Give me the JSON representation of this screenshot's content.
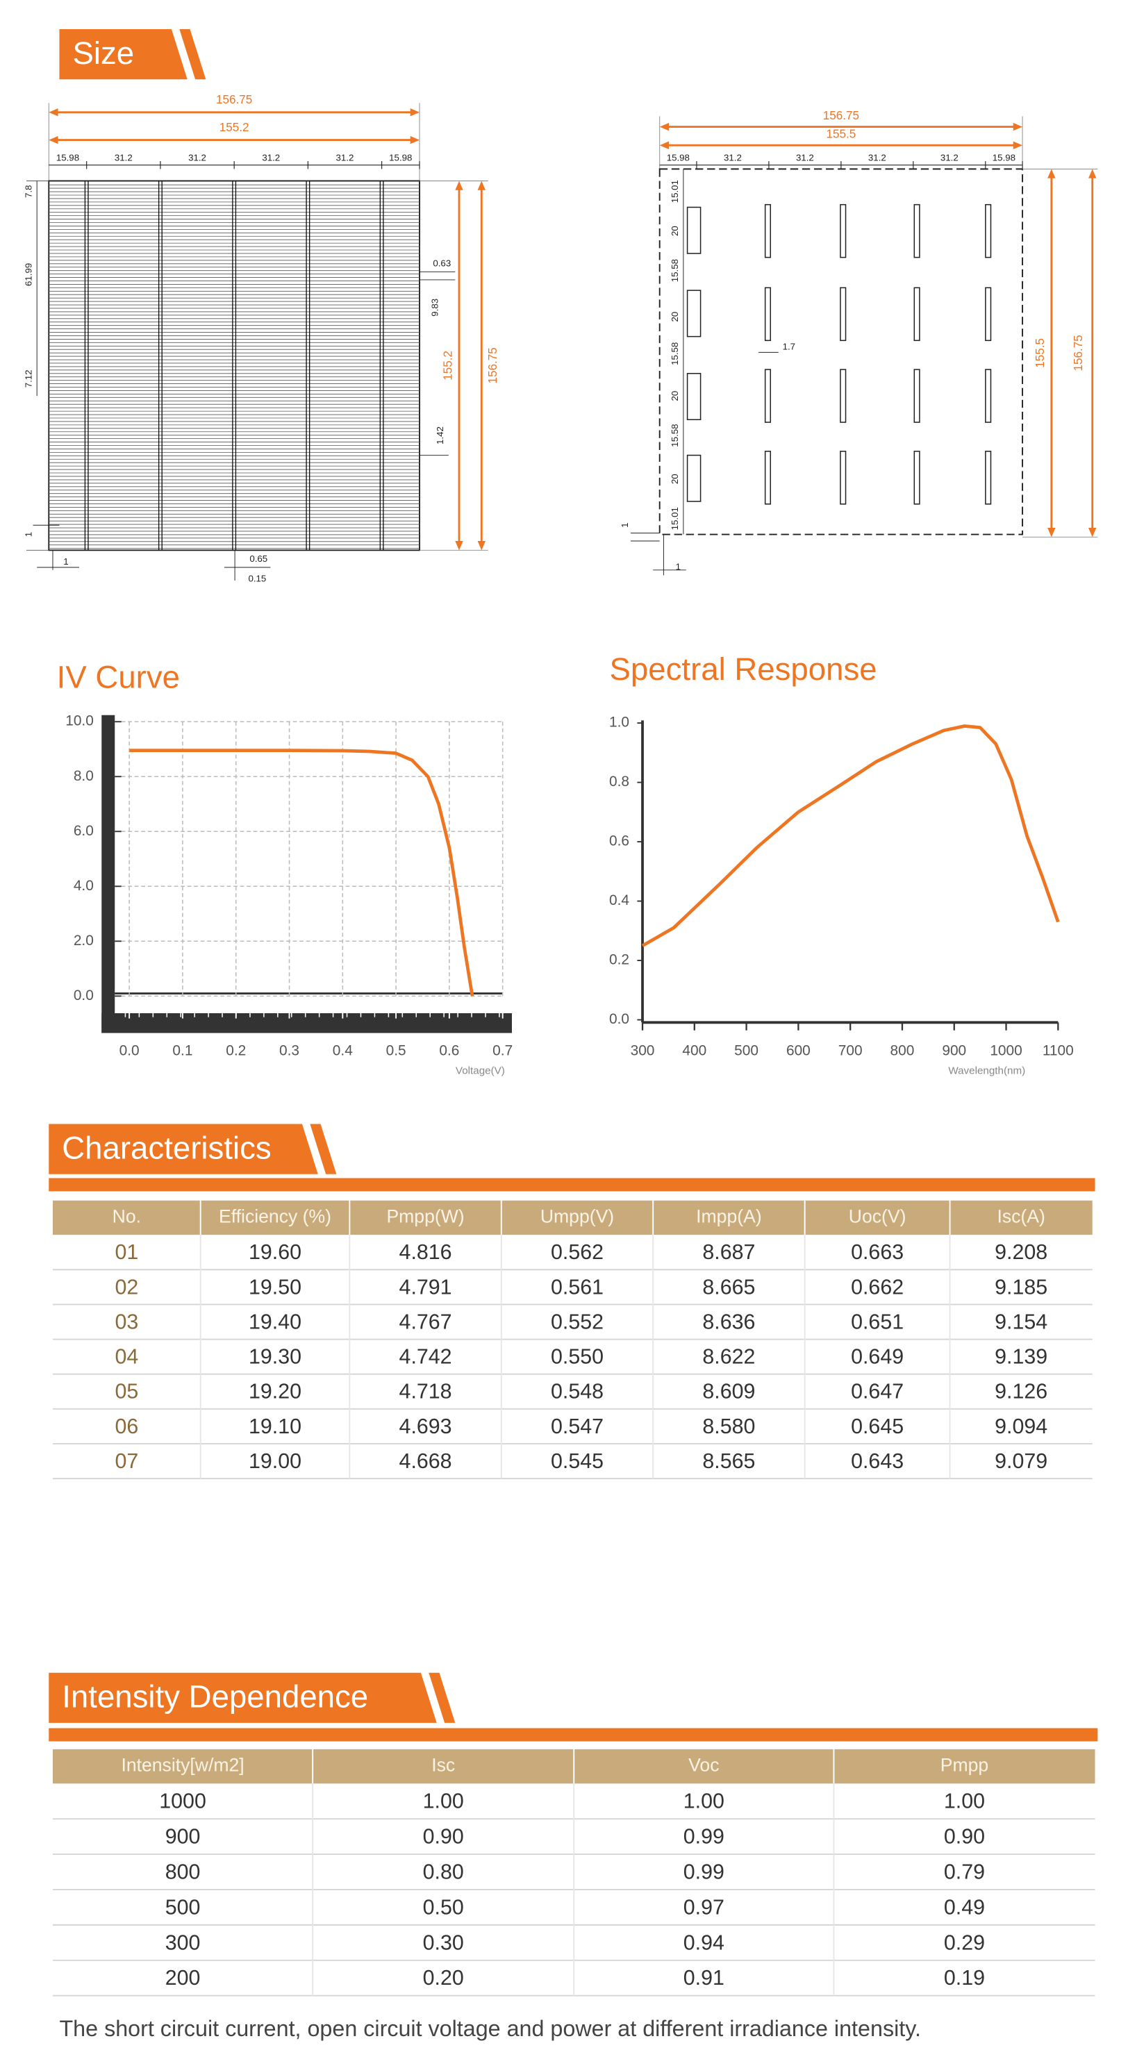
{
  "size": {
    "title": "Size",
    "front": {
      "total_width": "156.75",
      "inner_width": "155.2",
      "segments": [
        "15.98",
        "31.2",
        "31.2",
        "31.2",
        "31.2",
        "15.98"
      ],
      "height_inner": "155.2",
      "height_total": "156.75",
      "left": [
        "7.8",
        "61.99",
        "7.12"
      ],
      "notes": [
        "0.63",
        "9.83",
        "1.42",
        "1",
        "1",
        "0.65",
        "0.15"
      ]
    },
    "back": {
      "total_width": "156.75",
      "inner_width": "155.5",
      "segments": [
        "15.98",
        "31.2",
        "31.2",
        "31.2",
        "31.2",
        "15.98"
      ],
      "height_inner": "155.5",
      "height_total": "156.75",
      "left": [
        "15.01",
        "20",
        "15.58",
        "20",
        "15.58",
        "20",
        "15.58",
        "20",
        "15.01"
      ],
      "notes": [
        "1.7",
        "1",
        "1"
      ]
    }
  },
  "chart_data": [
    {
      "type": "line",
      "title": "IV Curve",
      "x_label": "Voltage(V)",
      "color": "#ee7623",
      "grid": true,
      "x": [
        0,
        0.1,
        0.2,
        0.3,
        0.4,
        0.45,
        0.5,
        0.53,
        0.56,
        0.58,
        0.6,
        0.615,
        0.628,
        0.643
      ],
      "values": [
        8.95,
        8.95,
        8.95,
        8.95,
        8.94,
        8.92,
        8.85,
        8.6,
        8.0,
        7.0,
        5.4,
        3.6,
        1.8,
        0
      ],
      "xlim": [
        0,
        0.7
      ],
      "xticks": [
        {
          "value": 0,
          "label": "0.0"
        },
        0.1,
        0.2,
        0.3,
        0.4,
        0.5,
        0.6,
        0.7
      ],
      "ylim": [
        0,
        10
      ],
      "yticks": [
        {
          "value": 0,
          "label": "0.0"
        },
        {
          "value": 2,
          "label": "2.0"
        },
        {
          "value": 4,
          "label": "4.0"
        },
        {
          "value": 6,
          "label": "6.0"
        },
        {
          "value": 8,
          "label": "8.0"
        },
        {
          "value": 10,
          "label": "10.0"
        }
      ]
    },
    {
      "type": "line",
      "title": "Spectral Response",
      "x_label": "Wavelength(nm)",
      "color": "#ee7623",
      "grid": false,
      "x": [
        300,
        360,
        450,
        520,
        600,
        680,
        750,
        820,
        880,
        920,
        950,
        980,
        1010,
        1040,
        1070,
        1100
      ],
      "values": [
        0.25,
        0.31,
        0.46,
        0.58,
        0.7,
        0.79,
        0.87,
        0.93,
        0.975,
        0.99,
        0.985,
        0.93,
        0.81,
        0.62,
        0.48,
        0.33
      ],
      "xlim": [
        300,
        1100
      ],
      "xticks": [
        300,
        400,
        500,
        600,
        700,
        800,
        900,
        1000,
        1100
      ],
      "ylim": [
        0,
        1
      ],
      "yticks": [
        {
          "value": 0,
          "label": "0.0"
        },
        0.2,
        0.4,
        0.6,
        0.8,
        {
          "value": 1,
          "label": "1.0"
        }
      ]
    }
  ],
  "characteristics": {
    "title": "Characteristics",
    "columns": [
      "No.",
      "Efficiency (%)",
      "Pmpp(W)",
      "Umpp(V)",
      "Impp(A)",
      "Uoc(V)",
      "Isc(A)"
    ],
    "rows": [
      [
        "01",
        "19.60",
        "4.816",
        "0.562",
        "8.687",
        "0.663",
        "9.208"
      ],
      [
        "02",
        "19.50",
        "4.791",
        "0.561",
        "8.665",
        "0.662",
        "9.185"
      ],
      [
        "03",
        "19.40",
        "4.767",
        "0.552",
        "8.636",
        "0.651",
        "9.154"
      ],
      [
        "04",
        "19.30",
        "4.742",
        "0.550",
        "8.622",
        "0.649",
        "9.139"
      ],
      [
        "05",
        "19.20",
        "4.718",
        "0.548",
        "8.609",
        "0.647",
        "9.126"
      ],
      [
        "06",
        "19.10",
        "4.693",
        "0.547",
        "8.580",
        "0.645",
        "9.094"
      ],
      [
        "07",
        "19.00",
        "4.668",
        "0.545",
        "8.565",
        "0.643",
        "9.079"
      ]
    ]
  },
  "intensity": {
    "title": "Intensity Dependence",
    "columns": [
      "Intensity[w/m2]",
      "Isc",
      "Voc",
      "Pmpp"
    ],
    "rows": [
      [
        "1000",
        "1.00",
        "1.00",
        "1.00"
      ],
      [
        "900",
        "0.90",
        "0.99",
        "0.90"
      ],
      [
        "800",
        "0.80",
        "0.99",
        "0.79"
      ],
      [
        "500",
        "0.50",
        "0.97",
        "0.49"
      ],
      [
        "300",
        "0.30",
        "0.94",
        "0.29"
      ],
      [
        "200",
        "0.20",
        "0.91",
        "0.19"
      ]
    ]
  },
  "note": "The short circuit current, open circuit voltage and power at different irradiance intensity."
}
